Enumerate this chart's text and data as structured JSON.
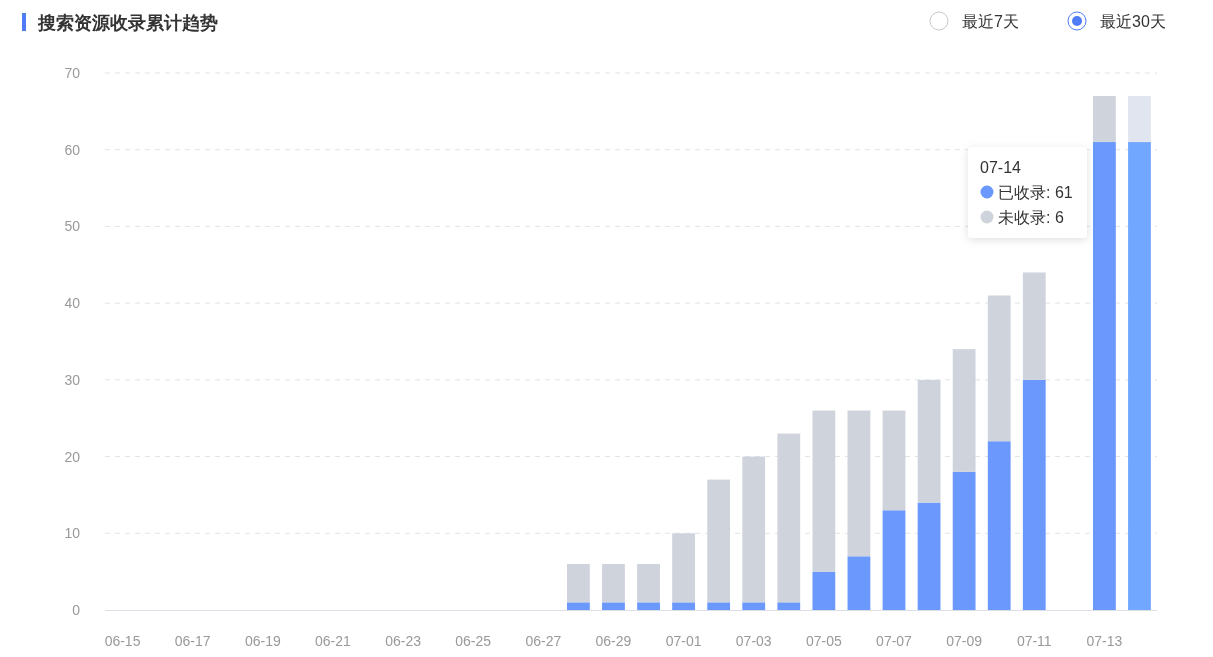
{
  "chart_data": {
    "type": "bar",
    "title": "搜索资源收录累计趋势",
    "annotations": [
      "最近7天",
      "最近30天",
      "07-14",
      "已收录: 61",
      "未收录: 6"
    ],
    "categories": [
      "06-15",
      null,
      "06-17",
      null,
      "06-19",
      null,
      "06-21",
      null,
      "06-23",
      null,
      "06-25",
      null,
      "06-27",
      null,
      "06-29",
      null,
      "07-01",
      null,
      "07-03",
      null,
      "07-05",
      null,
      "07-07",
      null,
      "07-09",
      null,
      "07-11",
      null,
      "07-13",
      null
    ],
    "series": [
      {
        "color": "#6a98fc",
        "colors": [
          "#6a98fc",
          "#6a98fc",
          "#6a98fc",
          "#6a98fc",
          "#6a98fc",
          "#6a98fc",
          "#6a98fc",
          "#6a98fc",
          "#6a98fc",
          "#6a98fc",
          "#6a98fc",
          "#6a98fc",
          "#6a98fc",
          "#6a98fc",
          "#6a98fc",
          "#6a98fc",
          "#6a98fc",
          "#6a98fc",
          "#6a98fc",
          "#6a98fc",
          "#6a98fc",
          "#6a98fc",
          "#6a98fc",
          "#6a98fc",
          "#6a98fc",
          "#6a98fc",
          "#6a98fc",
          null,
          "#6a98fc",
          "#72a7ff"
        ],
        "values": [
          0,
          0,
          0,
          0,
          0,
          0,
          0,
          0,
          0,
          0,
          0,
          0,
          0,
          1,
          1,
          1,
          1,
          1,
          1,
          1,
          5,
          7,
          13,
          14,
          18,
          22,
          30,
          null,
          61,
          61
        ]
      },
      {
        "color": "#cfd3dc",
        "colors": [
          "#cfd3dc",
          "#cfd3dc",
          "#cfd3dc",
          "#cfd3dc",
          "#cfd3dc",
          "#cfd3dc",
          "#cfd3dc",
          "#cfd3dc",
          "#cfd3dc",
          "#cfd3dc",
          "#cfd3dc",
          "#cfd3dc",
          "#cfd3dc",
          "#cfd3dc",
          "#cfd3dc",
          "#cfd3dc",
          "#cfd3dc",
          "#cfd3dc",
          "#cfd3dc",
          "#cfd3dc",
          "#cfd3dc",
          "#cfd3dc",
          "#cfd3dc",
          "#cfd3dc",
          "#cfd3dc",
          "#cfd3dc",
          "#cfd3dc",
          null,
          "#cfd3dc",
          "#e1e5ef"
        ],
        "values": [
          0,
          0,
          0,
          0,
          0,
          0,
          0,
          0,
          0,
          0,
          0,
          0,
          0,
          5,
          5,
          5,
          9,
          16,
          19,
          22,
          21,
          19,
          13,
          16,
          16,
          19,
          14,
          null,
          6,
          6
        ]
      }
    ],
    "stacked": true,
    "ylim": [
      0,
      70
    ],
    "yticks": [
      0,
      10,
      20,
      30,
      40,
      50,
      60,
      70
    ],
    "grid": "y"
  }
}
